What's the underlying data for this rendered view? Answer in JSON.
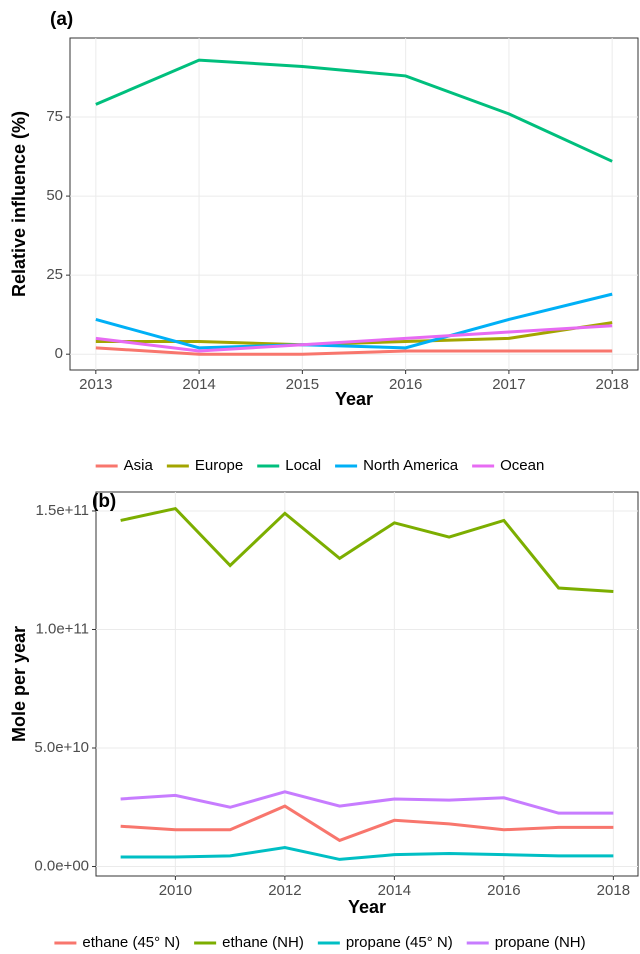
{
  "chart_data": [
    {
      "type": "line",
      "title": "(a)",
      "x_label": "Year",
      "y_label": "Relative influence (%)",
      "x": [
        2013,
        2014,
        2015,
        2016,
        2017,
        2018
      ],
      "xlim": [
        2012.75,
        2018.25
      ],
      "xticks": [
        2013,
        2014,
        2015,
        2016,
        2017,
        2018
      ],
      "ylim": [
        -5,
        100
      ],
      "yticks": [
        0,
        25,
        50,
        75
      ],
      "grid": true,
      "series": [
        {
          "name": "Asia",
          "color": "#F8766D",
          "values": [
            2,
            0,
            0,
            1,
            1,
            1
          ]
        },
        {
          "name": "Europe",
          "color": "#A3A500",
          "values": [
            4,
            4,
            3,
            4,
            5,
            10
          ]
        },
        {
          "name": "Local",
          "color": "#00BF7D",
          "values": [
            79,
            93,
            91,
            88,
            76,
            61
          ]
        },
        {
          "name": "North America",
          "color": "#00B0F6",
          "values": [
            11,
            2,
            3,
            2,
            11,
            19
          ]
        },
        {
          "name": "Ocean",
          "color": "#E76BF3",
          "values": [
            5,
            1,
            3,
            5,
            7,
            9
          ]
        }
      ]
    },
    {
      "type": "line",
      "title": "(b)",
      "x_label": "Year",
      "y_label": "Mole per year",
      "x": [
        2009,
        2010,
        2011,
        2012,
        2013,
        2014,
        2015,
        2016,
        2017,
        2018
      ],
      "xlim": [
        2008.55,
        2018.45
      ],
      "xticks": [
        2010,
        2012,
        2014,
        2016,
        2018
      ],
      "ylim": [
        -4000000000,
        158000000000
      ],
      "yticks": [
        {
          "value": 0,
          "label": "0.0e+00"
        },
        {
          "value": 50000000000,
          "label": "5.0e+10"
        },
        {
          "value": 100000000000,
          "label": "1.0e+11"
        },
        {
          "value": 150000000000,
          "label": "1.5e+11"
        }
      ],
      "grid": true,
      "series": [
        {
          "name": "ethane (45° N)",
          "color": "#F8766D",
          "values": [
            17000000000,
            15500000000,
            15500000000,
            25500000000,
            11000000000,
            19500000000,
            18000000000,
            15500000000,
            16500000000,
            16500000000
          ]
        },
        {
          "name": "ethane (NH)",
          "color": "#7CAE00",
          "values": [
            146000000000,
            151000000000,
            127000000000,
            149000000000,
            130000000000,
            145000000000,
            139000000000,
            146000000000,
            117500000000,
            116000000000
          ]
        },
        {
          "name": "propane (45° N)",
          "color": "#00BFC4",
          "values": [
            4000000000,
            4000000000,
            4500000000,
            8000000000,
            3000000000,
            5000000000,
            5500000000,
            5000000000,
            4500000000,
            4500000000
          ]
        },
        {
          "name": "propane (NH)",
          "color": "#C77CFF",
          "values": [
            28500000000,
            30000000000,
            25000000000,
            31500000000,
            25500000000,
            28500000000,
            28000000000,
            29000000000,
            22500000000,
            22500000000
          ]
        }
      ]
    }
  ]
}
